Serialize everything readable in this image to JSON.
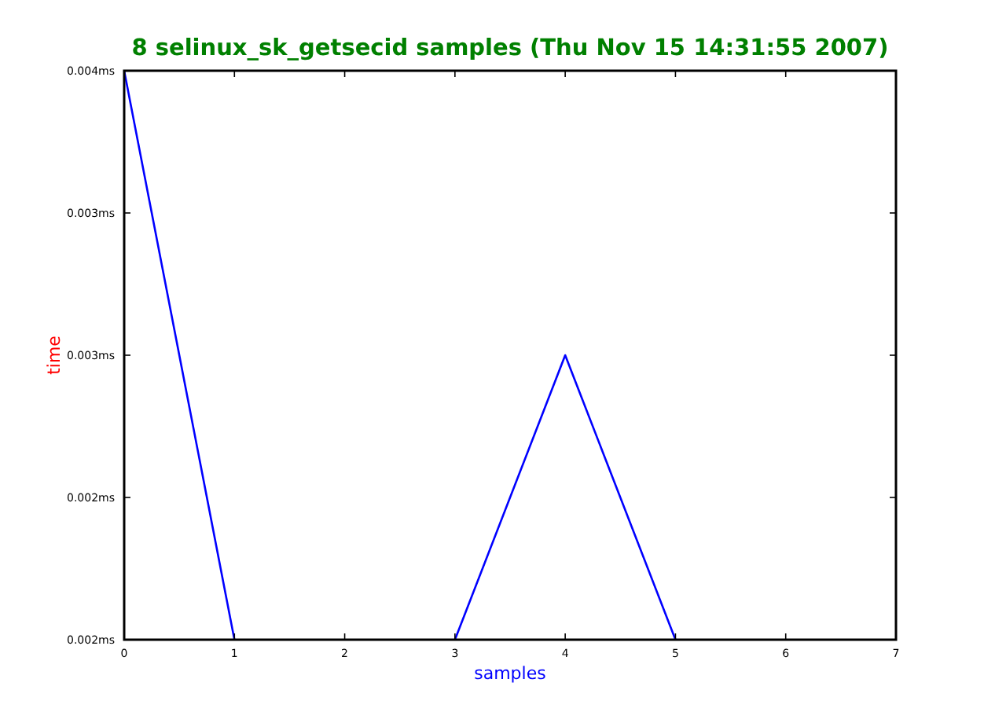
{
  "chart_data": {
    "type": "line",
    "title": "8 selinux_sk_getsecid samples (Thu Nov 15 14:31:55 2007)",
    "xlabel": "samples",
    "ylabel": "time",
    "x": [
      0,
      1,
      2,
      3,
      4,
      5
    ],
    "series": [
      {
        "color": "#0000ff",
        "values": [
          0.004,
          0.002,
          null,
          0.002,
          0.003,
          0.002
        ]
      }
    ],
    "xlim": [
      0,
      7
    ],
    "xticks": [
      0,
      1,
      2,
      3,
      4,
      5,
      6,
      7
    ],
    "ylim": [
      0.002,
      0.004
    ],
    "yticks": [
      {
        "value": 0.002,
        "label": "0.002ms"
      },
      {
        "value": 0.0025,
        "label": "0.002ms"
      },
      {
        "value": 0.003,
        "label": "0.003ms"
      },
      {
        "value": 0.0035,
        "label": "0.003ms"
      },
      {
        "value": 0.004,
        "label": "0.004ms"
      }
    ],
    "grid": false,
    "marker": "none",
    "line_style": "solid"
  }
}
